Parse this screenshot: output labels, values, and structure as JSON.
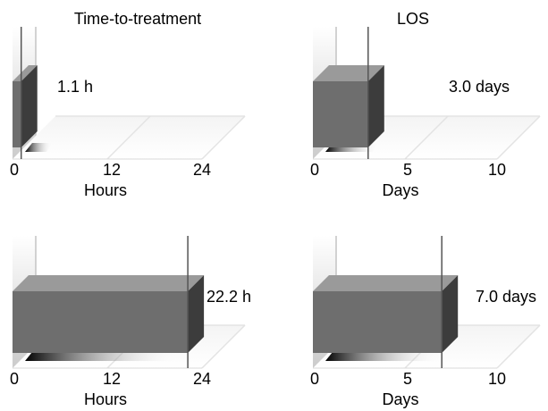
{
  "colors": {
    "bar_front": "#6e6e6e",
    "bar_top": "#9a9a9a",
    "bar_side": "#3c3c3c",
    "wall": "#c4c4c4",
    "grid": "#e3e3e3",
    "marker": "#555555"
  },
  "chart_data": [
    {
      "type": "bar",
      "title": "Time-to-treatment",
      "xlabel": "Hours",
      "ticks": [
        "0",
        "12",
        "24"
      ],
      "xlim": [
        0,
        24
      ],
      "values": [
        1.1
      ],
      "value_label": "1.1 h"
    },
    {
      "type": "bar",
      "title": "LOS",
      "xlabel": "Days",
      "ticks": [
        "0",
        "5",
        "10"
      ],
      "xlim": [
        0,
        10
      ],
      "values": [
        3.0
      ],
      "value_label": "3.0 days"
    },
    {
      "type": "bar",
      "title": "",
      "xlabel": "Hours",
      "ticks": [
        "0",
        "12",
        "24"
      ],
      "xlim": [
        0,
        24
      ],
      "values": [
        22.2
      ],
      "value_label": "22.2 h"
    },
    {
      "type": "bar",
      "title": "",
      "xlabel": "Days",
      "ticks": [
        "0",
        "5",
        "10"
      ],
      "xlim": [
        0,
        10
      ],
      "values": [
        7.0
      ],
      "value_label": "7.0 days"
    }
  ]
}
